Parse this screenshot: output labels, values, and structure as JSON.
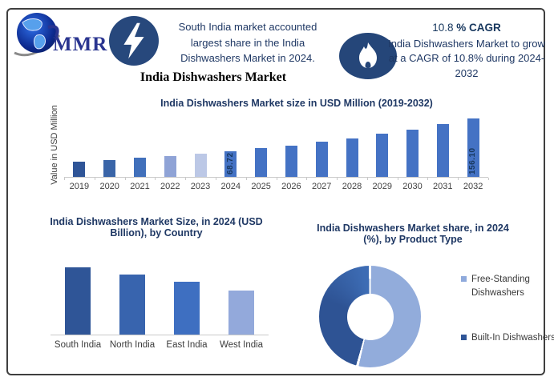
{
  "header": {
    "logo": {
      "text": "MMR"
    },
    "highlight": {
      "icon": "lightning-bolt-icon",
      "text": "South India market accounted largest share in the India Dishwashers Market in 2024."
    },
    "market_title": "India Dishwashers Market",
    "cagr": {
      "icon": "flame-icon",
      "value": "10.8",
      "suffix": "% CAGR",
      "description": "India Dishwashers Market to grow at a CAGR of 10.8% during 2024-2032"
    }
  },
  "chart_data": [
    {
      "id": "market-size-by-year",
      "type": "bar",
      "title": "India Dishwashers Market size in USD Million (2019-2032)",
      "ylabel": "Value in USD Million",
      "categories": [
        "2019",
        "2020",
        "2021",
        "2022",
        "2023",
        "2024",
        "2025",
        "2026",
        "2027",
        "2028",
        "2029",
        "2030",
        "2031",
        "2032"
      ],
      "values": [
        41.2,
        45.6,
        50.5,
        56.0,
        62.0,
        68.72,
        76.1,
        84.4,
        93.5,
        103.6,
        114.8,
        127.2,
        140.9,
        156.1
      ],
      "data_labels": [
        {
          "index": 5,
          "text": "68.72"
        },
        {
          "index": 13,
          "text": "156.10"
        }
      ],
      "bar_colors": [
        "#2f5597",
        "#3a65a8",
        "#4170bb",
        "#8fa3d6",
        "#bcc8e6",
        "#4472c4",
        "#4472c4",
        "#4472c4",
        "#4472c4",
        "#4472c4",
        "#4472c4",
        "#4472c4",
        "#4472c4",
        "#4472c4"
      ],
      "ylim": [
        0,
        160
      ],
      "grid": false
    },
    {
      "id": "market-size-by-country",
      "type": "bar",
      "title": "India Dishwashers Market Size, in 2024 (USD Billion), by Country",
      "categories": [
        "South India",
        "North India",
        "East India",
        "West India"
      ],
      "values": [
        1.0,
        0.89,
        0.78,
        0.66
      ],
      "bar_colors": [
        "#2f5597",
        "#3864ae",
        "#3e6fc1",
        "#93a9db"
      ],
      "grid": false
    },
    {
      "id": "market-share-by-product-type",
      "type": "pie",
      "donut": true,
      "title": "India Dishwashers Market share, in 2024 (%), by Product Type",
      "labels": [
        "Free-Standing Dishwashers",
        "Built-In Dishwashers"
      ],
      "values": [
        54,
        46
      ],
      "slice_colors": [
        "#92acdb",
        "#2e5394"
      ],
      "slice_color_accent": "#3d6cb4",
      "legend_marker_colors": [
        "#8faadc",
        "#2f5597"
      ],
      "legend_position": "right"
    }
  ],
  "palette": {
    "navy_text": "#1f3864",
    "icon_navy": "#27487c",
    "flame_navy": "#254679",
    "axis_gray": "#c9c9c9",
    "label_gray": "#404040",
    "border_gray": "#3f3f3f"
  }
}
